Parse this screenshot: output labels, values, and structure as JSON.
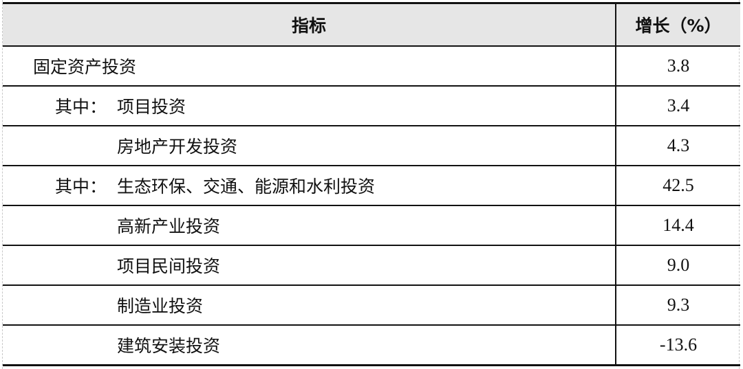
{
  "table": {
    "headers": [
      "指标",
      "增长（%）"
    ],
    "rows": [
      {
        "prefix": "",
        "label": "固定资产投资",
        "value": "3.8",
        "level": 0
      },
      {
        "prefix": "其中：",
        "label": "项目投资",
        "value": "3.4",
        "level": 1
      },
      {
        "prefix": "",
        "label": "房地产开发投资",
        "value": "4.3",
        "level": 2
      },
      {
        "prefix": "其中：",
        "label": "生态环保、交通、能源和水利投资",
        "value": "42.5",
        "level": 1
      },
      {
        "prefix": "",
        "label": "高新产业投资",
        "value": "14.4",
        "level": 2
      },
      {
        "prefix": "",
        "label": "项目民间投资",
        "value": "9.0",
        "level": 2
      },
      {
        "prefix": "",
        "label": "制造业投资",
        "value": "9.3",
        "level": 2
      },
      {
        "prefix": "",
        "label": "建筑安装投资",
        "value": "-13.6",
        "level": 2
      }
    ]
  }
}
